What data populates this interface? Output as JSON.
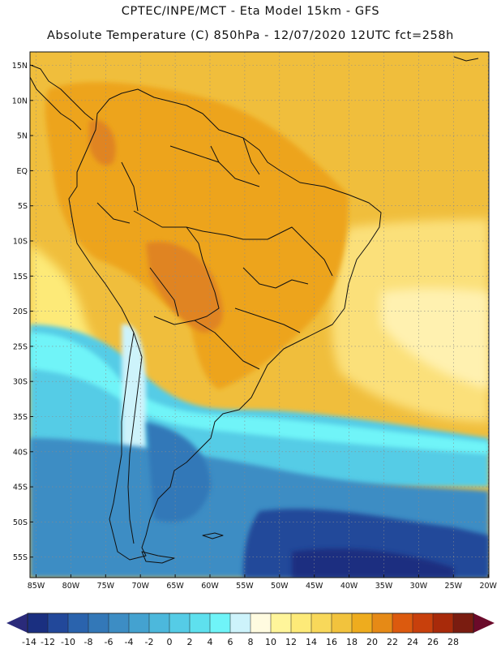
{
  "header": {
    "line1": "CPTEC/INPE/MCT -  Eta Model 15km - GFS",
    "line2": "Absolute Temperature (C) 850hPa - 12/07/2020 12UTC fct=258h"
  },
  "map": {
    "lat_labels": [
      "15N",
      "10N",
      "5N",
      "EQ",
      "5S",
      "10S",
      "15S",
      "20S",
      "25S",
      "30S",
      "35S",
      "40S",
      "45S",
      "50S",
      "55S"
    ],
    "lon_labels": [
      "85W",
      "80W",
      "75W",
      "70W",
      "65W",
      "60W",
      "55W",
      "50W",
      "45W",
      "40W",
      "35W",
      "30W",
      "25W",
      "20W"
    ]
  },
  "colorbar": {
    "labels": [
      "-14",
      "-12",
      "-10",
      "-8",
      "-6",
      "-4",
      "-2",
      "0",
      "2",
      "4",
      "6",
      "8",
      "10",
      "12",
      "14",
      "16",
      "18",
      "20",
      "22",
      "24",
      "26",
      "28"
    ],
    "colors": [
      "#1a2f80",
      "#22489a",
      "#2a63ad",
      "#3378b8",
      "#3d8dc4",
      "#44a2d0",
      "#4cb8dc",
      "#55cce6",
      "#5ee0ee",
      "#6ff4f8",
      "#cdf3fb",
      "#fffbe0",
      "#fff59a",
      "#fdea78",
      "#f8d85a",
      "#f2c33d",
      "#eeac1e",
      "#e68a16",
      "#dc5a0e",
      "#c8400c",
      "#a82a0a",
      "#7a1c10"
    ],
    "low_arrow_color": "#2a2a7a",
    "high_arrow_color": "#6b0a2a"
  },
  "colors": {
    "ocean_warm": "#f0be3c",
    "land_warm": "#eda41e",
    "land_hot": "#e08420",
    "south_cold": "#3d8dc4",
    "cyan": "#55e0ee",
    "deep": "#22489a"
  }
}
